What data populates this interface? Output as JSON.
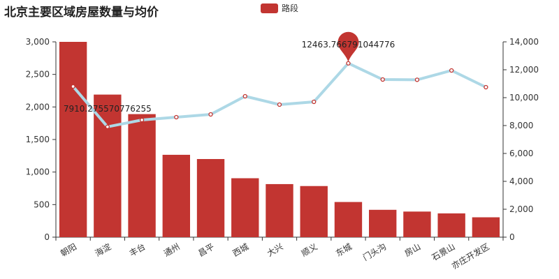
{
  "title": "北京主要区域房屋数量与均价",
  "legend": {
    "label": "路段",
    "color": "#c23531"
  },
  "chart_data": {
    "type": "bar",
    "categories": [
      "朝阳",
      "海淀",
      "丰台",
      "通州",
      "昌平",
      "西城",
      "大兴",
      "顺义",
      "东城",
      "门头沟",
      "房山",
      "石景山",
      "亦庄开发区"
    ],
    "series": [
      {
        "name": "路段",
        "type": "bar",
        "axis": "left",
        "color": "#c23531",
        "values": [
          3000,
          2190,
          1890,
          1265,
          1200,
          905,
          815,
          785,
          540,
          420,
          393,
          365,
          305
        ]
      },
      {
        "type": "line",
        "axis": "right",
        "color": "#add8e6",
        "values": [
          10800,
          7910.275570776255,
          8400,
          8600,
          8800,
          10100,
          9500,
          9700,
          12463.766791044776,
          11300,
          11280,
          11950,
          10750
        ]
      }
    ],
    "y_left": {
      "min": 0,
      "max": 3000,
      "ticks": [
        "0",
        "500",
        "1,000",
        "1,500",
        "2,000",
        "2,500",
        "3,000"
      ]
    },
    "y_right": {
      "min": 0,
      "max": 14000,
      "ticks": [
        "0",
        "2,000",
        "4,000",
        "6,000",
        "8,000",
        "10,000",
        "12,000",
        "14,000"
      ]
    },
    "annotations": {
      "max_label": "12463.766791044776",
      "min_label": "7910.275570776255"
    },
    "grid": false,
    "legend_position": "top-center"
  }
}
